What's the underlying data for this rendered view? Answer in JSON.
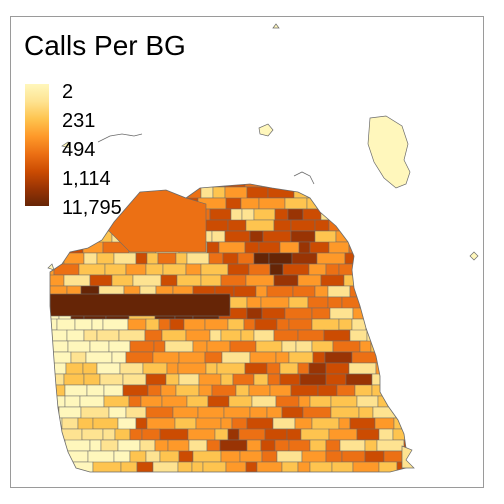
{
  "legend": {
    "title": "Calls Per BG",
    "ticks": [
      "2",
      "231",
      "494",
      "1,114",
      "11,795"
    ],
    "colors": [
      "#fff7bc",
      "#fee391",
      "#fec44f",
      "#fe9929",
      "#ec7014",
      "#cc4c02",
      "#993404",
      "#662506"
    ]
  },
  "map": {
    "region": "San Francisco block groups",
    "fill_scale": "YlOrBr",
    "outline_color": "#6b6b6b",
    "background": "#ffffff"
  }
}
